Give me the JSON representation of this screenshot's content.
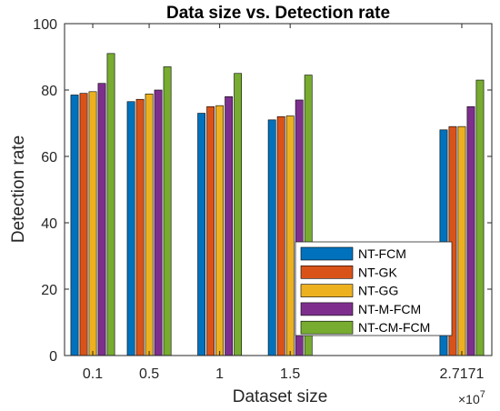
{
  "chart_data": {
    "type": "bar",
    "title": "Data size vs. Detection rate",
    "xlabel": "Dataset size",
    "ylabel": "Detection rate",
    "x_tick_labels": [
      "0.1",
      "0.5",
      "1",
      "1.5",
      "2.7171"
    ],
    "x_values": [
      0.1,
      0.5,
      1,
      1.5,
      2.7171
    ],
    "x_multiplier": "×10",
    "x_multiplier_exponent": "7",
    "xlim": [
      -0.1,
      2.93
    ],
    "ylim": [
      0,
      100
    ],
    "y_ticks": [
      0,
      20,
      40,
      60,
      80,
      100
    ],
    "grid": false,
    "legend_position": "lower-right",
    "series": [
      {
        "name": "NT-FCM",
        "color": "#0072BD",
        "values": [
          78.5,
          76.5,
          73.0,
          71.0,
          68.0
        ]
      },
      {
        "name": "NT-GK",
        "color": "#D95319",
        "values": [
          79.0,
          77.2,
          75.0,
          72.0,
          69.0
        ]
      },
      {
        "name": "NT-GG",
        "color": "#EDB120",
        "values": [
          79.5,
          78.8,
          75.3,
          72.2,
          69.0
        ]
      },
      {
        "name": "NT-M-FCM",
        "color": "#7E2F8E",
        "values": [
          82.0,
          80.0,
          78.0,
          77.0,
          75.0
        ]
      },
      {
        "name": "NT-CM-FCM",
        "color": "#77AC30",
        "values": [
          91.0,
          87.0,
          85.0,
          84.5,
          83.0
        ]
      }
    ]
  }
}
